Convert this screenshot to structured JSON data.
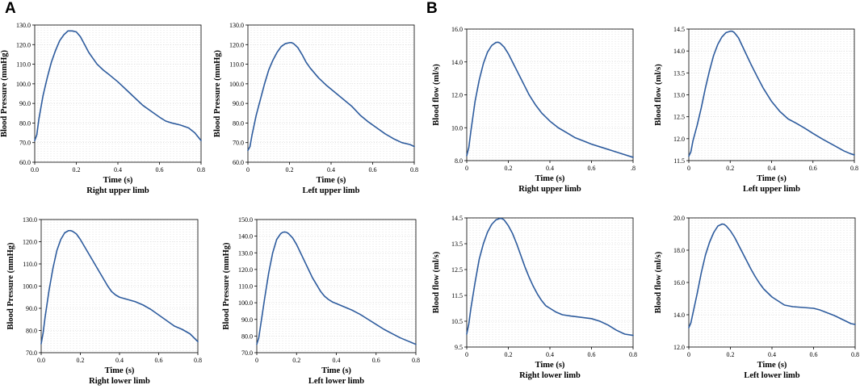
{
  "figure": {
    "panel_letters": [
      "A",
      "B"
    ]
  },
  "colors": {
    "curve": "#2d5b9d",
    "grid": "#d4d4d4",
    "axis": "#000000",
    "background": "#ffffff"
  },
  "chart_data": [
    {
      "id": "bp-right-upper",
      "type": "line",
      "ylabel": "Blood Pressure (mmHg)",
      "xlabel": "Time (s)",
      "caption": "Right upper limb",
      "xlim": [
        0,
        0.8
      ],
      "ylim": [
        60,
        130
      ],
      "xticks": [
        0,
        0.2,
        0.4,
        0.6,
        0.8
      ],
      "xtick_labels": [
        "0.0",
        "0.2",
        "0.4",
        "0.6",
        "0.8"
      ],
      "yticks": [
        60,
        70,
        80,
        90,
        100,
        110,
        120,
        130
      ],
      "ytick_labels": [
        "60.0",
        "70.0",
        "80.0",
        "90.0",
        "100.0",
        "110.0",
        "120.0",
        "130.0"
      ],
      "x": [
        0,
        0.01,
        0.02,
        0.04,
        0.06,
        0.08,
        0.1,
        0.12,
        0.14,
        0.16,
        0.17,
        0.18,
        0.2,
        0.22,
        0.24,
        0.26,
        0.28,
        0.3,
        0.33,
        0.36,
        0.4,
        0.44,
        0.48,
        0.52,
        0.56,
        0.6,
        0.63,
        0.66,
        0.7,
        0.74,
        0.77,
        0.8
      ],
      "y": [
        71,
        74,
        82,
        94,
        103,
        111,
        117,
        122,
        125,
        127,
        127,
        127,
        126.5,
        124,
        120,
        116,
        113,
        110,
        107,
        104.5,
        101,
        97,
        93,
        89,
        86,
        83,
        81,
        80,
        79,
        77.5,
        75,
        71
      ]
    },
    {
      "id": "bp-left-upper",
      "type": "line",
      "ylabel": "Blood Pressure (mmHg)",
      "xlabel": "Time (s)",
      "caption": "Left upper limb",
      "xlim": [
        0,
        0.8
      ],
      "ylim": [
        60,
        130
      ],
      "xticks": [
        0,
        0.2,
        0.4,
        0.6,
        0.8
      ],
      "xtick_labels": [
        "0",
        "0.2",
        "0.4",
        "0.6",
        "0.8"
      ],
      "yticks": [
        60,
        70,
        80,
        90,
        100,
        110,
        120,
        130
      ],
      "ytick_labels": [
        "60.0",
        "70.0",
        "80.0",
        "90.0",
        "100.0",
        "110.0",
        "120.0",
        "130.0"
      ],
      "x": [
        0,
        0.01,
        0.02,
        0.04,
        0.06,
        0.08,
        0.1,
        0.12,
        0.14,
        0.16,
        0.18,
        0.2,
        0.21,
        0.22,
        0.24,
        0.26,
        0.28,
        0.3,
        0.34,
        0.38,
        0.42,
        0.46,
        0.5,
        0.54,
        0.58,
        0.62,
        0.66,
        0.7,
        0.74,
        0.78,
        0.8
      ],
      "y": [
        66,
        68,
        74,
        84,
        92,
        100,
        107,
        112,
        116,
        119,
        120.5,
        121,
        121,
        120.5,
        118.5,
        115,
        111,
        108,
        103,
        99,
        95.5,
        92,
        88.5,
        84,
        80.5,
        77.5,
        74.5,
        72,
        70,
        69,
        68
      ]
    },
    {
      "id": "bf-right-upper",
      "type": "line",
      "ylabel": "Blood flow (ml/s)",
      "xlabel": "Time (s)",
      "caption": "Right upper limb",
      "xlim": [
        0,
        0.8
      ],
      "ylim": [
        8,
        16
      ],
      "xticks": [
        0,
        0.2,
        0.4,
        0.6,
        0.8
      ],
      "xtick_labels": [
        "0",
        "0.2",
        "0.4",
        "0.6",
        ".8"
      ],
      "yticks": [
        8,
        10,
        12,
        14,
        16
      ],
      "ytick_labels": [
        "8.0",
        "10.0",
        "12.0",
        "14.0",
        "16.0"
      ],
      "x": [
        0,
        0.01,
        0.02,
        0.04,
        0.06,
        0.08,
        0.1,
        0.12,
        0.14,
        0.15,
        0.16,
        0.18,
        0.2,
        0.22,
        0.24,
        0.26,
        0.28,
        0.3,
        0.33,
        0.36,
        0.4,
        0.44,
        0.48,
        0.52,
        0.56,
        0.6,
        0.65,
        0.7,
        0.75,
        0.8
      ],
      "y": [
        8.3,
        8.8,
        9.8,
        11.6,
        12.9,
        13.9,
        14.6,
        15.0,
        15.18,
        15.2,
        15.15,
        14.9,
        14.5,
        14.0,
        13.5,
        13.0,
        12.5,
        12.0,
        11.4,
        10.9,
        10.4,
        10.0,
        9.7,
        9.4,
        9.2,
        9.0,
        8.8,
        8.6,
        8.4,
        8.2
      ]
    },
    {
      "id": "bf-left-upper",
      "type": "line",
      "ylabel": "Blood flow (ml/s)",
      "xlabel": "Time (s)",
      "caption": "Left upper limb",
      "xlim": [
        0,
        0.8
      ],
      "ylim": [
        11.5,
        14.5
      ],
      "xticks": [
        0,
        0.2,
        0.4,
        0.6,
        0.8
      ],
      "xtick_labels": [
        "0",
        "0.2",
        "0.4",
        "0.6",
        "0.8"
      ],
      "yticks": [
        11.5,
        12,
        12.5,
        13,
        13.5,
        14,
        14.5
      ],
      "ytick_labels": [
        "11.5",
        "12.0",
        "12.5",
        "13.0",
        "13.5",
        "14.0",
        "14.5"
      ],
      "x": [
        0,
        0.01,
        0.02,
        0.04,
        0.06,
        0.08,
        0.1,
        0.12,
        0.14,
        0.16,
        0.18,
        0.2,
        0.21,
        0.22,
        0.24,
        0.26,
        0.28,
        0.3,
        0.33,
        0.36,
        0.4,
        0.44,
        0.48,
        0.52,
        0.56,
        0.6,
        0.65,
        0.7,
        0.75,
        0.78,
        0.8
      ],
      "y": [
        11.6,
        11.7,
        11.95,
        12.3,
        12.7,
        13.15,
        13.55,
        13.9,
        14.15,
        14.32,
        14.42,
        14.45,
        14.45,
        14.42,
        14.3,
        14.1,
        13.9,
        13.7,
        13.42,
        13.15,
        12.85,
        12.62,
        12.45,
        12.35,
        12.24,
        12.12,
        11.98,
        11.85,
        11.72,
        11.66,
        11.63
      ]
    },
    {
      "id": "bp-right-lower",
      "type": "line",
      "ylabel": "Blood Pressure (mmHg)",
      "xlabel": "Time (s)",
      "caption": "Right lower limb",
      "xlim": [
        0,
        0.8
      ],
      "ylim": [
        70,
        130
      ],
      "xticks": [
        0,
        0.2,
        0.4,
        0.6,
        0.8
      ],
      "xtick_labels": [
        "0.0",
        "0.2",
        "0.4",
        "0.6",
        "0.8"
      ],
      "yticks": [
        70,
        80,
        90,
        100,
        110,
        120,
        130
      ],
      "ytick_labels": [
        "70.0",
        "80.0",
        "90.0",
        "100.0",
        "110.0",
        "120.0",
        "130.0"
      ],
      "x": [
        0,
        0.01,
        0.02,
        0.04,
        0.06,
        0.08,
        0.1,
        0.12,
        0.14,
        0.15,
        0.16,
        0.18,
        0.2,
        0.22,
        0.24,
        0.26,
        0.28,
        0.3,
        0.32,
        0.34,
        0.36,
        0.38,
        0.4,
        0.44,
        0.48,
        0.52,
        0.56,
        0.6,
        0.64,
        0.68,
        0.72,
        0.76,
        0.8
      ],
      "y": [
        74,
        79,
        86,
        98,
        108,
        116,
        121,
        124,
        125,
        125,
        124.7,
        123.5,
        121,
        118,
        115,
        112,
        109,
        106,
        103,
        100,
        97.5,
        96,
        95,
        94,
        93,
        91.5,
        89.5,
        87,
        84.5,
        82,
        80.5,
        78.5,
        75
      ]
    },
    {
      "id": "bp-left-lower",
      "type": "line",
      "ylabel": "Blood Pressure (mmHg)",
      "xlabel": "Time (s)",
      "caption": "Left lower limb",
      "xlim": [
        0,
        0.8
      ],
      "ylim": [
        70,
        150
      ],
      "xticks": [
        0,
        0.2,
        0.4,
        0.6,
        0.8
      ],
      "xtick_labels": [
        "0",
        "0.2",
        "0.4",
        "0.6",
        "0.8"
      ],
      "yticks": [
        70,
        80,
        90,
        100,
        110,
        120,
        130,
        140,
        150
      ],
      "ytick_labels": [
        "70.0",
        "80.0",
        "90.0",
        "100.0",
        "110.0",
        "120.0",
        "130.0",
        "140.0",
        "150.0"
      ],
      "x": [
        0,
        0.01,
        0.02,
        0.04,
        0.06,
        0.08,
        0.1,
        0.12,
        0.13,
        0.14,
        0.15,
        0.16,
        0.18,
        0.2,
        0.22,
        0.24,
        0.26,
        0.28,
        0.3,
        0.32,
        0.34,
        0.36,
        0.38,
        0.4,
        0.44,
        0.48,
        0.52,
        0.56,
        0.6,
        0.64,
        0.68,
        0.72,
        0.76,
        0.8
      ],
      "y": [
        75,
        79,
        87,
        103,
        118,
        130,
        138,
        141.5,
        142.3,
        142.5,
        142.3,
        141.5,
        139,
        135,
        130,
        125,
        120,
        115,
        111,
        107,
        104,
        102,
        100.5,
        99.5,
        97.5,
        95.5,
        93,
        90,
        87,
        84,
        81.5,
        79,
        77,
        75
      ]
    },
    {
      "id": "bf-right-lower",
      "type": "line",
      "ylabel": "Blood flow (ml/s)",
      "xlabel": "Time (s)",
      "caption": "Right lower limb",
      "xlim": [
        0,
        0.8
      ],
      "ylim": [
        9.5,
        14.5
      ],
      "xticks": [
        0,
        0.2,
        0.4,
        0.6,
        0.8
      ],
      "xtick_labels": [
        "0",
        "0.2",
        "0.4",
        "0.6",
        "0.8"
      ],
      "yticks": [
        9.5,
        10.5,
        11.5,
        12.5,
        13.5,
        14.5
      ],
      "ytick_labels": [
        "9.5",
        "10.5",
        "11.5",
        "12.5",
        "13.5",
        "14.5"
      ],
      "x": [
        0,
        0.01,
        0.02,
        0.04,
        0.06,
        0.08,
        0.1,
        0.12,
        0.14,
        0.16,
        0.17,
        0.18,
        0.2,
        0.22,
        0.24,
        0.26,
        0.28,
        0.3,
        0.32,
        0.34,
        0.36,
        0.38,
        0.4,
        0.43,
        0.46,
        0.5,
        0.55,
        0.6,
        0.64,
        0.68,
        0.72,
        0.76,
        0.8
      ],
      "y": [
        10.0,
        10.4,
        11.0,
        12.0,
        12.9,
        13.5,
        13.95,
        14.25,
        14.42,
        14.48,
        14.47,
        14.42,
        14.2,
        13.9,
        13.5,
        13.05,
        12.6,
        12.2,
        11.85,
        11.55,
        11.3,
        11.1,
        11.0,
        10.85,
        10.75,
        10.7,
        10.65,
        10.6,
        10.5,
        10.35,
        10.15,
        10.0,
        9.95
      ]
    },
    {
      "id": "bf-left-lower",
      "type": "line",
      "ylabel": "Blood flow (ml/s)",
      "xlabel": "Time (s)",
      "caption": "Left lower limb",
      "xlim": [
        0,
        0.8
      ],
      "ylim": [
        12,
        20
      ],
      "xticks": [
        0,
        0.2,
        0.4,
        0.6,
        0.8
      ],
      "xtick_labels": [
        "0",
        "0.2",
        "0.4",
        "0.6",
        "0.8"
      ],
      "yticks": [
        12,
        14,
        16,
        18,
        20
      ],
      "ytick_labels": [
        "12.0",
        "14.0",
        "16.0",
        "18.0",
        "20.0"
      ],
      "x": [
        0,
        0.01,
        0.02,
        0.04,
        0.06,
        0.08,
        0.1,
        0.12,
        0.14,
        0.16,
        0.17,
        0.18,
        0.2,
        0.22,
        0.24,
        0.26,
        0.28,
        0.3,
        0.32,
        0.34,
        0.36,
        0.38,
        0.4,
        0.43,
        0.46,
        0.5,
        0.55,
        0.6,
        0.63,
        0.66,
        0.7,
        0.74,
        0.78,
        0.8
      ],
      "y": [
        13.2,
        13.5,
        14.1,
        15.3,
        16.6,
        17.7,
        18.5,
        19.1,
        19.5,
        19.62,
        19.6,
        19.5,
        19.2,
        18.8,
        18.3,
        17.8,
        17.3,
        16.8,
        16.35,
        15.95,
        15.6,
        15.35,
        15.1,
        14.85,
        14.6,
        14.5,
        14.45,
        14.4,
        14.3,
        14.15,
        13.95,
        13.7,
        13.45,
        13.4
      ]
    }
  ]
}
